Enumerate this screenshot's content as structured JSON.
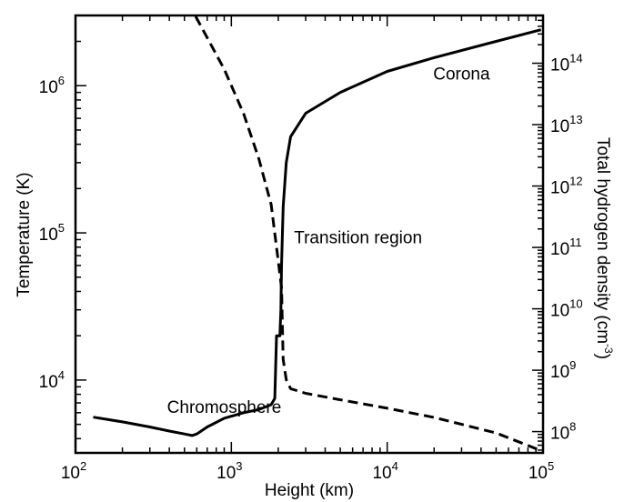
{
  "chart_data": {
    "type": "line",
    "title": "",
    "xlabel": "Height (km)",
    "ylabel": "Temperature (K)",
    "y2label": "Total hydrogen density (cm",
    "y2label_sup": "-3",
    "y2label_end": ")",
    "xscale": "log",
    "yscale": "log",
    "y2scale": "log",
    "xlim": [
      100,
      100000
    ],
    "ylim": [
      3200,
      3000000
    ],
    "y2lim": [
      45000000,
      600000000000000
    ],
    "grid": false,
    "legend": "none",
    "x_ticks": [
      {
        "value": 100,
        "base": "10",
        "exp": "2"
      },
      {
        "value": 1000,
        "base": "10",
        "exp": "3"
      },
      {
        "value": 10000,
        "base": "10",
        "exp": "4"
      },
      {
        "value": 100000,
        "base": "10",
        "exp": "5"
      }
    ],
    "y_ticks": [
      {
        "value": 10000,
        "base": "10",
        "exp": "4"
      },
      {
        "value": 100000,
        "base": "10",
        "exp": "5"
      },
      {
        "value": 1000000,
        "base": "10",
        "exp": "6"
      }
    ],
    "y2_ticks": [
      {
        "value": 100000000,
        "base": "10",
        "exp": "8"
      },
      {
        "value": 1000000000,
        "base": "10",
        "exp": "9"
      },
      {
        "value": 10000000000,
        "base": "10",
        "exp": "10"
      },
      {
        "value": 100000000000,
        "base": "10",
        "exp": "11"
      },
      {
        "value": 1000000000000,
        "base": "10",
        "exp": "12"
      },
      {
        "value": 10000000000000,
        "base": "10",
        "exp": "13"
      },
      {
        "value": 100000000000000,
        "base": "10",
        "exp": "14"
      }
    ],
    "series": [
      {
        "axis": "left",
        "style": "solid",
        "points": [
          [
            130,
            5600
          ],
          [
            200,
            5200
          ],
          [
            300,
            4800
          ],
          [
            400,
            4500
          ],
          [
            500,
            4300
          ],
          [
            560,
            4200
          ],
          [
            600,
            4300
          ],
          [
            700,
            4800
          ],
          [
            900,
            5500
          ],
          [
            1200,
            6000
          ],
          [
            1500,
            6300
          ],
          [
            1800,
            6800
          ],
          [
            1900,
            7500
          ],
          [
            1950,
            20000
          ],
          [
            2050,
            20000
          ],
          [
            2080,
            30000
          ],
          [
            2100,
            60000
          ],
          [
            2150,
            150000
          ],
          [
            2250,
            300000
          ],
          [
            2400,
            450000
          ],
          [
            3000,
            650000
          ],
          [
            5000,
            900000
          ],
          [
            10000,
            1250000
          ],
          [
            20000,
            1550000
          ],
          [
            50000,
            2000000
          ],
          [
            97000,
            2400000
          ]
        ]
      },
      {
        "axis": "right",
        "style": "dashed",
        "points": [
          [
            590,
            580000000000000
          ],
          [
            700,
            260000000000000
          ],
          [
            900,
            80000000000000
          ],
          [
            1200,
            15000000000000
          ],
          [
            1500,
            2800000000000
          ],
          [
            1800,
            500000000000
          ],
          [
            2000,
            60000000000
          ],
          [
            2100,
            22000000000
          ],
          [
            2150,
            1500000000
          ],
          [
            2250,
            700000000
          ],
          [
            2400,
            500000000
          ],
          [
            3000,
            420000000
          ],
          [
            5000,
            330000000
          ],
          [
            10000,
            240000000
          ],
          [
            20000,
            170000000
          ],
          [
            50000,
            95000000
          ],
          [
            95000,
            50000000
          ]
        ]
      }
    ],
    "annotations": [
      {
        "text": "Corona",
        "x": 30000,
        "y": 1100000
      },
      {
        "text": "Transition region",
        "x": 6500,
        "y": 85000
      },
      {
        "text": "Chromosphere",
        "x": 900,
        "y": 6000
      }
    ]
  }
}
